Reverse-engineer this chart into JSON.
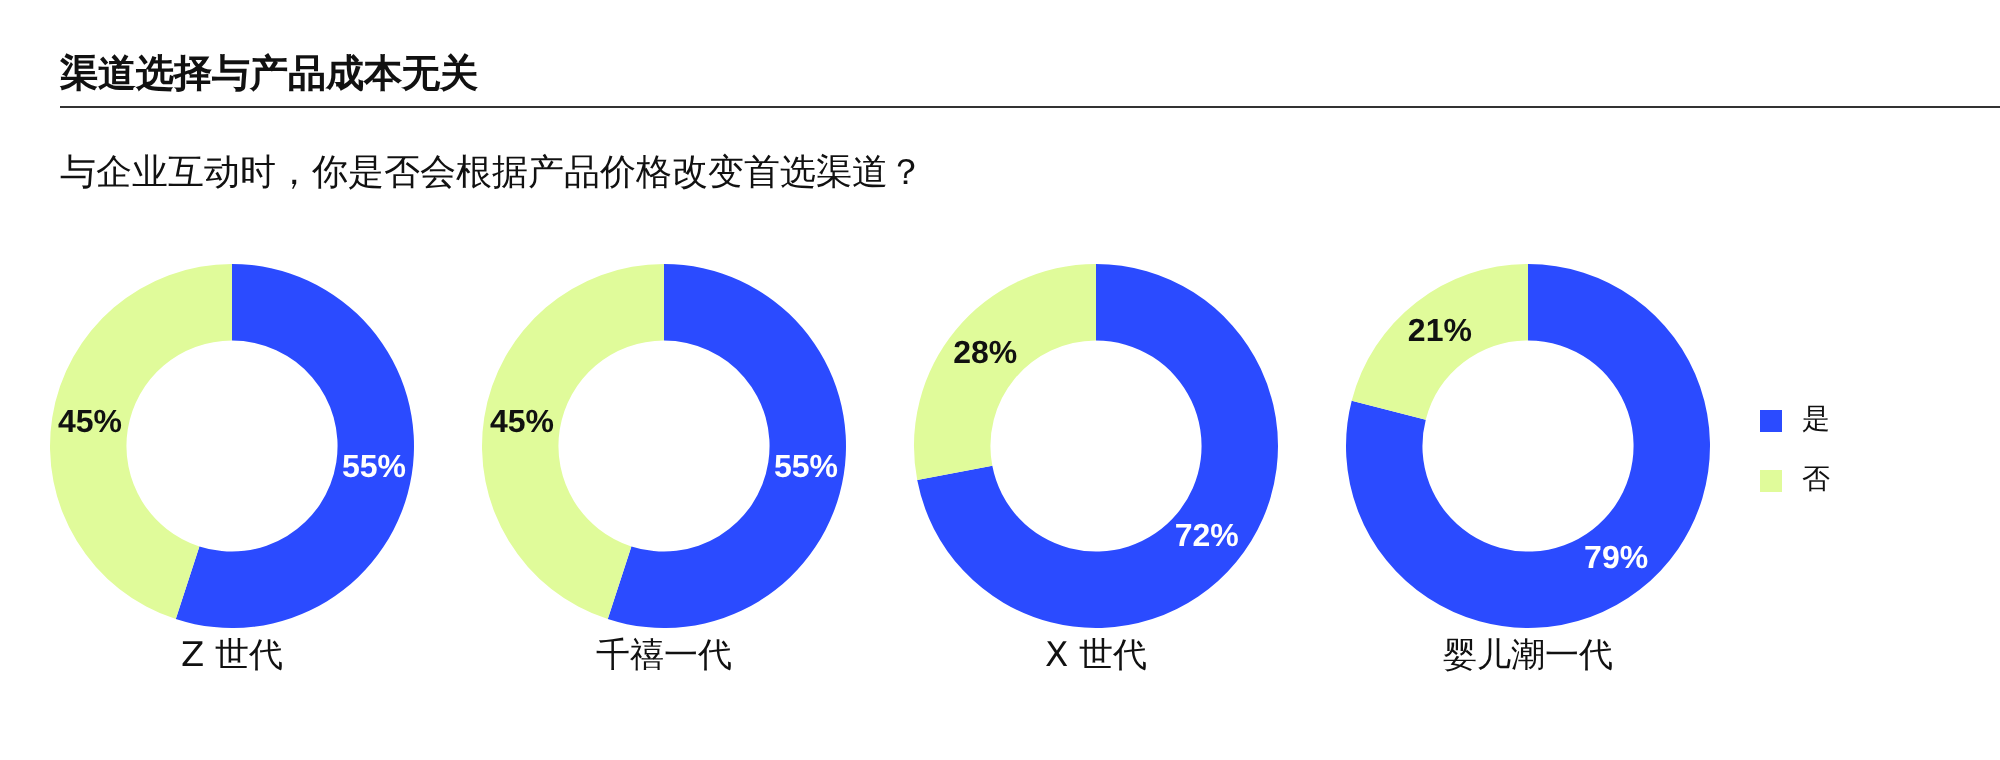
{
  "chart_data": [
    {
      "type": "donut",
      "title": "渠道选择与产品成本无关",
      "subtitle": "与企业互动时，你是否会根据产品价格改变首选渠道？",
      "xlabel": "Z 世代",
      "categories": [
        null,
        null
      ],
      "values": [
        55,
        45
      ],
      "colors": [
        "#2b4bff",
        "#e0fb9a"
      ],
      "value_labels": [
        "55%",
        "45%"
      ]
    },
    {
      "type": "donut",
      "xlabel": "千禧一代",
      "categories": [
        null,
        null
      ],
      "values": [
        55,
        45
      ],
      "colors": [
        "#2b4bff",
        "#e0fb9a"
      ],
      "value_labels": [
        "55%",
        "45%"
      ]
    },
    {
      "type": "donut",
      "xlabel": "X 世代",
      "categories": [
        null,
        null
      ],
      "values": [
        72,
        28
      ],
      "colors": [
        "#2b4bff",
        "#e0fb9a"
      ],
      "value_labels": [
        "72%",
        "28%"
      ]
    },
    {
      "type": "donut",
      "xlabel": "婴儿潮一代",
      "categories": [
        "是",
        "否"
      ],
      "values": [
        79,
        21
      ],
      "colors": [
        "#2b4bff",
        "#e0fb9a"
      ],
      "value_labels": [
        "79%",
        "21%"
      ],
      "legend": "right"
    }
  ]
}
